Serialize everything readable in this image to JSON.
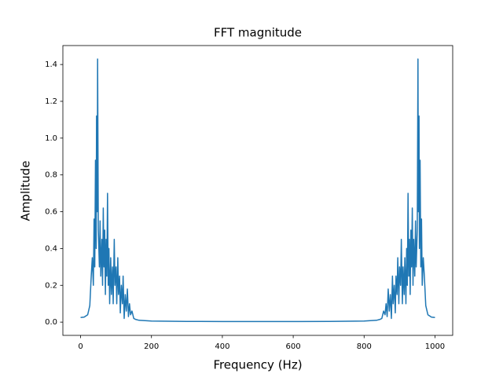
{
  "chart_data": {
    "type": "line",
    "title": "FFT magnitude",
    "xlabel": "Frequency (Hz)",
    "ylabel": "Amplitude",
    "xlim": [
      -50,
      1050
    ],
    "ylim": [
      -0.072,
      1.503
    ],
    "xticks": [
      0,
      200,
      400,
      600,
      800,
      1000
    ],
    "yticks": [
      {
        "value": 0,
        "label": "0.0"
      },
      0.2,
      0.4,
      0.6,
      0.8,
      {
        "value": 1,
        "label": "1.0"
      },
      1.2,
      1.4
    ],
    "series": [
      {
        "color": "#1f77b4",
        "x": [
          0,
          10,
          20,
          26,
          30,
          33,
          36,
          38,
          40,
          42,
          44,
          45,
          47,
          48,
          50,
          53,
          55,
          57,
          60,
          62,
          64,
          66,
          68,
          70,
          72,
          74,
          76,
          78,
          80,
          82,
          85,
          87,
          90,
          92,
          95,
          97,
          100,
          102,
          105,
          107,
          110,
          112,
          115,
          118,
          120,
          123,
          126,
          129,
          132,
          135,
          138,
          141,
          145,
          150,
          155,
          165,
          200,
          300,
          400,
          500,
          600,
          700,
          800,
          835,
          845,
          850,
          855,
          859,
          862,
          865,
          868,
          871,
          874,
          877,
          880,
          882,
          885,
          888,
          890,
          893,
          895,
          898,
          900,
          903,
          905,
          908,
          910,
          913,
          915,
          918,
          920,
          922,
          924,
          926,
          928,
          930,
          932,
          934,
          936,
          938,
          940,
          943,
          945,
          947,
          950,
          952,
          953,
          955,
          956,
          958,
          960,
          962,
          964,
          967,
          970,
          974,
          980,
          990,
          1000
        ],
        "values": [
          0.025,
          0.027,
          0.04,
          0.09,
          0.25,
          0.35,
          0.2,
          0.56,
          0.3,
          0.88,
          0.4,
          1.12,
          0.6,
          1.43,
          0.5,
          0.3,
          0.55,
          0.25,
          0.45,
          0.2,
          0.62,
          0.3,
          0.5,
          0.15,
          0.45,
          0.25,
          0.7,
          0.2,
          0.4,
          0.1,
          0.35,
          0.15,
          0.3,
          0.1,
          0.45,
          0.2,
          0.3,
          0.1,
          0.35,
          0.15,
          0.25,
          0.05,
          0.2,
          0.1,
          0.25,
          0.02,
          0.15,
          0.06,
          0.18,
          0.03,
          0.1,
          0.04,
          0.06,
          0.02,
          0.015,
          0.01,
          0.006,
          0.004,
          0.003,
          0.003,
          0.003,
          0.004,
          0.006,
          0.01,
          0.015,
          0.02,
          0.06,
          0.04,
          0.1,
          0.03,
          0.18,
          0.06,
          0.15,
          0.02,
          0.25,
          0.1,
          0.2,
          0.05,
          0.25,
          0.15,
          0.35,
          0.1,
          0.3,
          0.2,
          0.45,
          0.1,
          0.3,
          0.15,
          0.35,
          0.1,
          0.4,
          0.2,
          0.7,
          0.25,
          0.45,
          0.15,
          0.5,
          0.3,
          0.62,
          0.2,
          0.45,
          0.25,
          0.55,
          0.3,
          0.5,
          1.43,
          0.6,
          1.12,
          0.4,
          0.88,
          0.3,
          0.56,
          0.2,
          0.35,
          0.25,
          0.09,
          0.04,
          0.027,
          0.025
        ]
      }
    ]
  }
}
